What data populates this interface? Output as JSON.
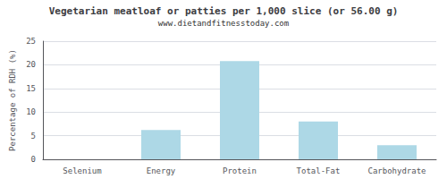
{
  "chart_data": {
    "type": "bar",
    "title": "Vegetarian meatloaf or patties per 1,000 slice (or 56.00 g)",
    "subtitle": "www.dietandfitnesstoday.com",
    "ylabel": "Percentage of RDH (%)",
    "categories": [
      "Selenium",
      "Energy",
      "Protein",
      "Total-Fat",
      "Carbohydrate"
    ],
    "values": [
      0.0,
      6.2,
      20.8,
      8.0,
      3.0
    ],
    "color": "#add8e6",
    "ylim": [
      0,
      25
    ],
    "yticks": [
      0,
      5,
      10,
      15,
      20,
      25
    ],
    "grid": true
  }
}
